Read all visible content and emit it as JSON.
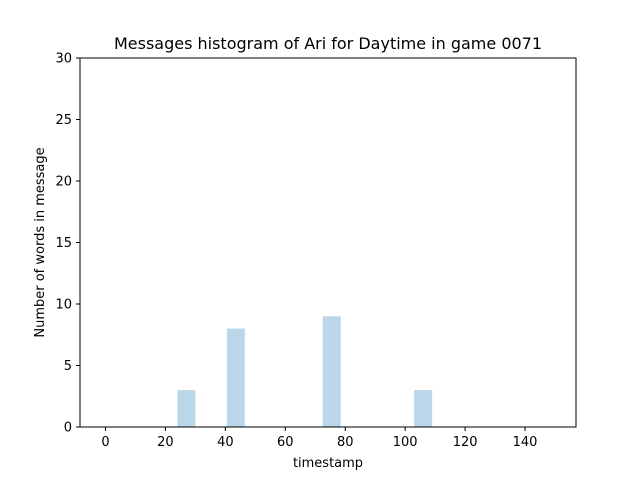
{
  "chart_data": {
    "type": "bar",
    "title": "Messages histogram of Ari for Daytime in game 0071",
    "xlabel": "timestamp",
    "ylabel": "Number of words in message",
    "xlim": [
      -8.5,
      157
    ],
    "ylim": [
      0,
      30
    ],
    "bin_width": 6,
    "xticks": [
      0,
      20,
      40,
      60,
      80,
      100,
      120,
      140
    ],
    "yticks": [
      0,
      5,
      10,
      15,
      20,
      25,
      30
    ],
    "bar_color": "#bad6e8",
    "grid": false,
    "bars": [
      {
        "x": 27,
        "value": 3
      },
      {
        "x": 43.5,
        "value": 8
      },
      {
        "x": 75.5,
        "value": 9
      },
      {
        "x": 106,
        "value": 3
      }
    ]
  }
}
